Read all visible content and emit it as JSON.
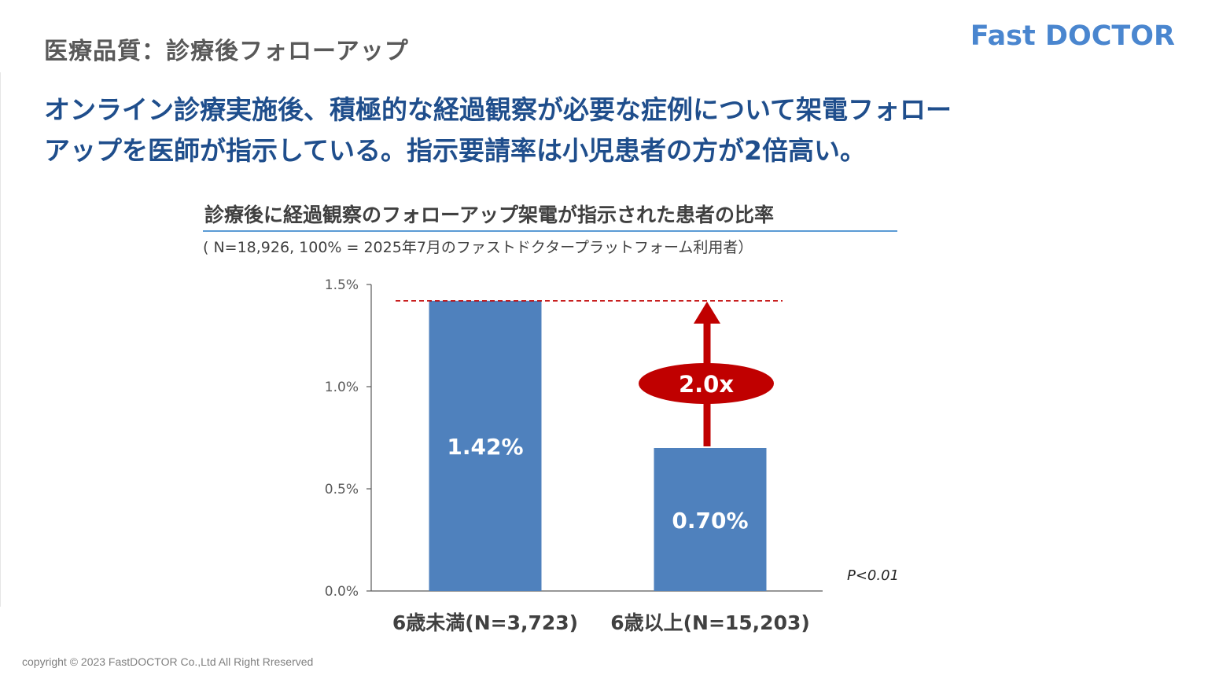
{
  "header": {
    "section_label": "医療品質：診療後フォローアップ",
    "logo_text": "Fast DOCTOR"
  },
  "headline": {
    "line1": "オンライン診療実施後、積極的な経過観察が必要な症例について架電フォロー",
    "line2": "アップを医師が指示している。指示要請率は小児患者の方が2倍高い。"
  },
  "chart_header": {
    "title": "診療後に経過観察のフォローアップ架電が指示された患者の比率",
    "note": "( N=18,926, 100% = 2025年7月のファストドクタープラットフォーム利用者）"
  },
  "chart_data": {
    "type": "bar",
    "categories": [
      "6歳未満(N=3,723)",
      "6歳以上(N=15,203)"
    ],
    "values": [
      1.42,
      0.7
    ],
    "value_labels": [
      "1.42%",
      "0.70%"
    ],
    "ylim": [
      0,
      1.5
    ],
    "y_ticks": [
      0,
      0.5,
      1.0,
      1.5
    ],
    "y_tick_labels": [
      "0.0%",
      "0.5%",
      "1.0%",
      "1.5%"
    ],
    "grid": false,
    "reference_line_value": 1.42,
    "multiplier_label": "2.0x",
    "p_value_label": "P<0.01",
    "colors": {
      "bar": "#4f81bd",
      "bar_label": "#ffffff",
      "accent": "#c00000",
      "axis": "#595959",
      "tick_label": "#595959",
      "category_label": "#404040"
    }
  },
  "footer": {
    "copyright": "copyright © 2023 FastDOCTOR Co.,Ltd All Right Rreserved"
  },
  "colors": {
    "headline": "#1f4e8c",
    "section_label": "#595959",
    "logo": "#4a86cf",
    "title_rule": "#5b9bd5"
  }
}
